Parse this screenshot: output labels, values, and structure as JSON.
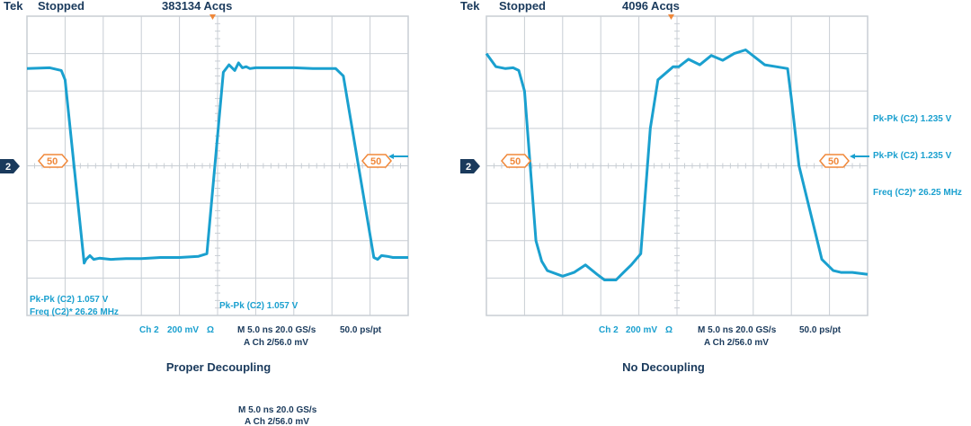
{
  "colors": {
    "trace": "#1aa0cf",
    "grid": "#c8ced4",
    "frame": "#1a3a5c",
    "marker": "#f0883a",
    "text_dark": "#1a3a5c"
  },
  "chart_data": [
    {
      "type": "line",
      "header": {
        "brand": "Tek",
        "status": "Stopped",
        "acqs": "383134 Acqs"
      },
      "caption": "Proper Decoupling",
      "channel_label": "2",
      "trigger_level_label": "50",
      "grid": {
        "divisions_x": 10,
        "divisions_y": 8
      },
      "measurements_inside": [
        "Pk-Pk (C2) 1.057 V",
        "Freq (C2)*  26.26 MHz",
        "Pk-Pk (C2) 1.057 V"
      ],
      "status_bar": {
        "ch": "Ch 2",
        "scale": "200 mV",
        "ohm": "Ω",
        "timebase": "M 5.0 ns 20.0 GS/s",
        "trigger": "A Ch 2/56.0 mV",
        "record": "50.0 ps/pt"
      },
      "x_units": "div",
      "y_units": "div",
      "xlim": [
        0,
        10
      ],
      "ylim": [
        -4,
        4
      ],
      "series": [
        {
          "x": [
            0,
            0.6,
            0.9,
            1.0,
            1.5,
            1.55,
            1.65,
            1.75,
            1.9,
            2.2,
            2.6,
            3.0,
            3.5,
            4.0,
            4.5,
            4.72,
            5.15,
            5.3,
            5.45,
            5.55,
            5.65,
            5.75,
            5.85,
            6.0,
            6.5,
            7.0,
            7.5,
            8.1,
            8.3,
            9.1,
            9.2,
            9.3,
            9.45,
            9.6,
            10
          ],
          "y": [
            2.6,
            2.62,
            2.55,
            2.3,
            -2.6,
            -2.5,
            -2.4,
            -2.5,
            -2.47,
            -2.5,
            -2.48,
            -2.48,
            -2.45,
            -2.45,
            -2.42,
            -2.35,
            2.5,
            2.7,
            2.55,
            2.75,
            2.62,
            2.65,
            2.6,
            2.62,
            2.62,
            2.62,
            2.6,
            2.6,
            2.4,
            -2.45,
            -2.5,
            -2.4,
            -2.42,
            -2.45,
            -2.45
          ]
        }
      ]
    },
    {
      "type": "line",
      "header": {
        "brand": "Tek",
        "status": "Stopped",
        "acqs": "4096 Acqs"
      },
      "caption": "No Decoupling",
      "channel_label": "2",
      "trigger_level_label": "50",
      "grid": {
        "divisions_x": 10,
        "divisions_y": 8
      },
      "measurements_right": [
        "Pk-Pk (C2)  1.235 V",
        "Pk-Pk (C2)  1.235 V",
        "Freq (C2)*  26.25 MHz"
      ],
      "status_bar": {
        "ch": "Ch 2",
        "scale": "200 mV",
        "ohm": "Ω",
        "timebase": "M 5.0 ns 20.0 GS/s",
        "trigger": "A Ch 2/56.0 mV",
        "record": "50.0 ps/pt"
      },
      "x_units": "div",
      "y_units": "div",
      "xlim": [
        0,
        10
      ],
      "ylim": [
        -4,
        4
      ],
      "series": [
        {
          "x": [
            0,
            0.25,
            0.5,
            0.7,
            0.85,
            1.0,
            1.3,
            1.45,
            1.6,
            2.0,
            2.3,
            2.6,
            2.9,
            3.1,
            3.4,
            3.6,
            3.8,
            4.05,
            4.3,
            4.5,
            4.9,
            5.05,
            5.3,
            5.6,
            5.9,
            6.2,
            6.5,
            6.8,
            7.05,
            7.3,
            7.6,
            7.9,
            8.0,
            8.2,
            8.8,
            9.1,
            9.3,
            9.6,
            10
          ],
          "y": [
            3.0,
            2.65,
            2.6,
            2.62,
            2.55,
            2.0,
            -2.0,
            -2.55,
            -2.8,
            -2.95,
            -2.85,
            -2.65,
            -2.9,
            -3.05,
            -3.05,
            -2.85,
            -2.65,
            -2.35,
            1.0,
            2.3,
            2.65,
            2.65,
            2.85,
            2.7,
            2.95,
            2.82,
            3.0,
            3.1,
            2.9,
            2.7,
            2.65,
            2.6,
            1.8,
            0.0,
            -2.5,
            -2.8,
            -2.85,
            -2.85,
            -2.9
          ]
        }
      ]
    }
  ],
  "footer": {
    "timebase": "M 5.0 ns 20.0 GS/s",
    "trigger": "A Ch 2/56.0 mV"
  }
}
